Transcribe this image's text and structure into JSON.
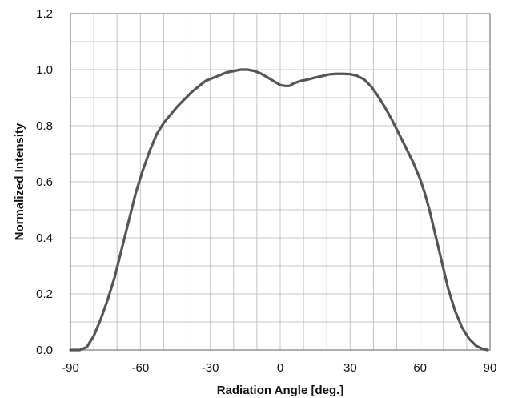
{
  "chart_data": {
    "type": "line",
    "title": "",
    "xlabel": "Radiation Angle [deg.]",
    "ylabel": "Normalized Intensity",
    "xlim": [
      -90,
      90
    ],
    "ylim": [
      0,
      1.2
    ],
    "x_ticks": [
      -90,
      -60,
      -30,
      0,
      30,
      60,
      90
    ],
    "x_tick_labels": [
      "-90",
      "-60",
      "-30",
      "0",
      "30",
      "60",
      "90"
    ],
    "y_ticks": [
      0,
      0.2,
      0.4,
      0.6,
      0.8,
      1.0,
      1.2
    ],
    "y_tick_labels": [
      "0.0",
      "0.2",
      "0.4",
      "0.6",
      "0.8",
      "1.0",
      "1.2"
    ],
    "x_minor_step": 10,
    "y_minor_step": 0.1,
    "grid": true,
    "legend": "none",
    "series": [
      {
        "color": "#555555",
        "points": [
          [
            -90,
            0.0
          ],
          [
            -86,
            0.0
          ],
          [
            -83,
            0.01
          ],
          [
            -80,
            0.05
          ],
          [
            -77,
            0.11
          ],
          [
            -74,
            0.18
          ],
          [
            -71,
            0.26
          ],
          [
            -68,
            0.36
          ],
          [
            -65,
            0.46
          ],
          [
            -62,
            0.56
          ],
          [
            -59,
            0.64
          ],
          [
            -56,
            0.71
          ],
          [
            -53,
            0.77
          ],
          [
            -50,
            0.81
          ],
          [
            -47,
            0.84
          ],
          [
            -44,
            0.87
          ],
          [
            -41,
            0.895
          ],
          [
            -38,
            0.92
          ],
          [
            -35,
            0.94
          ],
          [
            -32,
            0.96
          ],
          [
            -29,
            0.97
          ],
          [
            -26,
            0.98
          ],
          [
            -23,
            0.99
          ],
          [
            -20,
            0.995
          ],
          [
            -17,
            1.0
          ],
          [
            -14,
            1.0
          ],
          [
            -11,
            0.995
          ],
          [
            -8,
            0.985
          ],
          [
            -5,
            0.97
          ],
          [
            -2,
            0.955
          ],
          [
            0,
            0.945
          ],
          [
            2,
            0.942
          ],
          [
            4,
            0.942
          ],
          [
            6,
            0.952
          ],
          [
            9,
            0.96
          ],
          [
            12,
            0.965
          ],
          [
            15,
            0.972
          ],
          [
            18,
            0.977
          ],
          [
            21,
            0.983
          ],
          [
            24,
            0.985
          ],
          [
            27,
            0.985
          ],
          [
            30,
            0.984
          ],
          [
            33,
            0.978
          ],
          [
            36,
            0.965
          ],
          [
            39,
            0.94
          ],
          [
            42,
            0.905
          ],
          [
            45,
            0.865
          ],
          [
            48,
            0.82
          ],
          [
            51,
            0.77
          ],
          [
            54,
            0.72
          ],
          [
            57,
            0.67
          ],
          [
            60,
            0.61
          ],
          [
            62,
            0.56
          ],
          [
            64,
            0.5
          ],
          [
            66,
            0.43
          ],
          [
            68,
            0.36
          ],
          [
            70,
            0.29
          ],
          [
            72,
            0.22
          ],
          [
            75,
            0.14
          ],
          [
            78,
            0.08
          ],
          [
            81,
            0.04
          ],
          [
            84,
            0.015
          ],
          [
            87,
            0.003
          ],
          [
            89,
            0.0
          ]
        ]
      }
    ]
  }
}
